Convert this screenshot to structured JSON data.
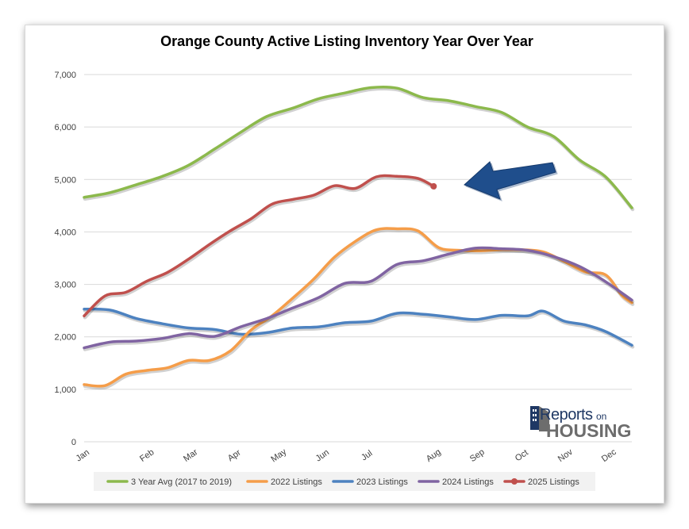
{
  "chart_data": {
    "type": "line",
    "title": "Orange County Active Listing Inventory Year Over Year",
    "xlabel": "",
    "ylabel": "",
    "x_ticks": [
      "Jan",
      "Feb",
      "Mar",
      "Apr",
      "May",
      "Jun",
      "Jul",
      "Aug",
      "Sep",
      "Oct",
      "Nov",
      "Dec"
    ],
    "y_ticks": [
      "0",
      "1,000",
      "2,000",
      "3,000",
      "4,000",
      "5,000",
      "6,000",
      "7,000"
    ],
    "xlim": [
      0,
      12
    ],
    "ylim": [
      0,
      7000
    ],
    "grid": "horizontal",
    "legend_position": "bottom",
    "series": [
      {
        "name": "3 Year Avg (2017 to 2019)",
        "color": "#8cb94c",
        "points": [
          [
            0,
            4660
          ],
          [
            0.5,
            4750
          ],
          [
            1,
            4900
          ],
          [
            1.5,
            5060
          ],
          [
            2,
            5270
          ],
          [
            2.5,
            5580
          ],
          [
            3,
            5900
          ],
          [
            3.5,
            6200
          ],
          [
            4,
            6360
          ],
          [
            4.5,
            6540
          ],
          [
            5,
            6650
          ],
          [
            5.5,
            6750
          ],
          [
            6,
            6740
          ],
          [
            6.5,
            6560
          ],
          [
            7,
            6500
          ],
          [
            7.5,
            6390
          ],
          [
            8,
            6280
          ],
          [
            8.5,
            6000
          ],
          [
            9,
            5820
          ],
          [
            9.5,
            5370
          ],
          [
            10,
            5050
          ],
          [
            10.5,
            4460
          ]
        ]
      },
      {
        "name": "2022 Listings",
        "color": "#f59d49",
        "points": [
          [
            0,
            1090
          ],
          [
            0.4,
            1070
          ],
          [
            0.8,
            1290
          ],
          [
            1.2,
            1360
          ],
          [
            1.6,
            1410
          ],
          [
            2,
            1550
          ],
          [
            2.4,
            1550
          ],
          [
            2.8,
            1730
          ],
          [
            3.2,
            2130
          ],
          [
            3.6,
            2400
          ],
          [
            4,
            2740
          ],
          [
            4.4,
            3100
          ],
          [
            4.8,
            3520
          ],
          [
            5.2,
            3820
          ],
          [
            5.6,
            4040
          ],
          [
            6,
            4060
          ],
          [
            6.4,
            4020
          ],
          [
            6.8,
            3700
          ],
          [
            7.2,
            3650
          ],
          [
            7.6,
            3640
          ],
          [
            8,
            3660
          ],
          [
            8.4,
            3660
          ],
          [
            8.8,
            3620
          ],
          [
            9.2,
            3440
          ],
          [
            9.6,
            3240
          ],
          [
            10,
            3180
          ],
          [
            10.3,
            2800
          ],
          [
            10.5,
            2650
          ]
        ]
      },
      {
        "name": "2023 Listings",
        "color": "#4d82c0",
        "points": [
          [
            0,
            2530
          ],
          [
            0.5,
            2510
          ],
          [
            1,
            2350
          ],
          [
            1.5,
            2250
          ],
          [
            2,
            2170
          ],
          [
            2.5,
            2140
          ],
          [
            3,
            2050
          ],
          [
            3.5,
            2080
          ],
          [
            4,
            2170
          ],
          [
            4.5,
            2190
          ],
          [
            5,
            2270
          ],
          [
            5.5,
            2300
          ],
          [
            6,
            2450
          ],
          [
            6.5,
            2430
          ],
          [
            7,
            2380
          ],
          [
            7.5,
            2330
          ],
          [
            8,
            2410
          ],
          [
            8.5,
            2400
          ],
          [
            8.8,
            2490
          ],
          [
            9.2,
            2300
          ],
          [
            9.6,
            2230
          ],
          [
            10,
            2100
          ],
          [
            10.5,
            1840
          ]
        ]
      },
      {
        "name": "2024 Listings",
        "color": "#8064a2",
        "points": [
          [
            0,
            1790
          ],
          [
            0.5,
            1900
          ],
          [
            1,
            1920
          ],
          [
            1.5,
            1970
          ],
          [
            2,
            2060
          ],
          [
            2.5,
            2010
          ],
          [
            3,
            2190
          ],
          [
            3.5,
            2350
          ],
          [
            4,
            2550
          ],
          [
            4.5,
            2750
          ],
          [
            5,
            3020
          ],
          [
            5.5,
            3060
          ],
          [
            6,
            3380
          ],
          [
            6.5,
            3450
          ],
          [
            7,
            3580
          ],
          [
            7.5,
            3690
          ],
          [
            8,
            3680
          ],
          [
            8.5,
            3650
          ],
          [
            9,
            3530
          ],
          [
            9.5,
            3340
          ],
          [
            10,
            3050
          ],
          [
            10.5,
            2700
          ]
        ]
      },
      {
        "name": "2025 Listings",
        "color": "#c0504d",
        "points": [
          [
            0,
            2400
          ],
          [
            0.4,
            2780
          ],
          [
            0.8,
            2850
          ],
          [
            1.2,
            3060
          ],
          [
            1.6,
            3230
          ],
          [
            2,
            3480
          ],
          [
            2.4,
            3760
          ],
          [
            2.8,
            4020
          ],
          [
            3.2,
            4250
          ],
          [
            3.6,
            4530
          ],
          [
            4,
            4620
          ],
          [
            4.4,
            4700
          ],
          [
            4.8,
            4880
          ],
          [
            5.2,
            4830
          ],
          [
            5.6,
            5050
          ],
          [
            6,
            5060
          ],
          [
            6.4,
            5020
          ],
          [
            6.7,
            4870
          ]
        ]
      }
    ]
  },
  "logo": {
    "reports": "Reports",
    "on": "on",
    "housing": "HOUSING"
  },
  "arrow_color": "#1f4e8c"
}
